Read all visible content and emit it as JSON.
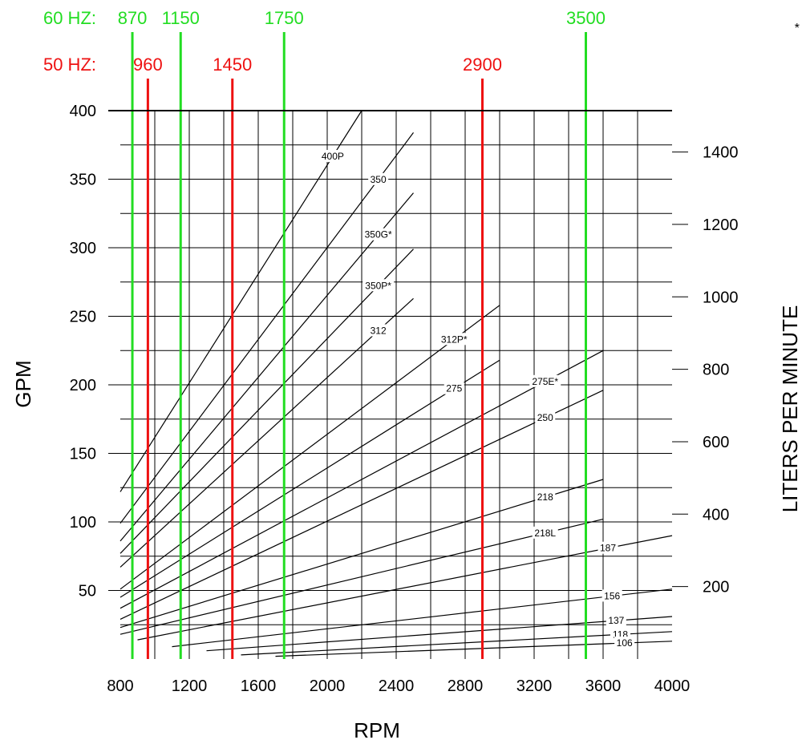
{
  "chart_data": {
    "type": "line",
    "title": "",
    "xlabel": "RPM",
    "ylabel": "GPM",
    "y2label": "LITERS PER MINUTE",
    "xlim": [
      800,
      4000
    ],
    "ylim": [
      0,
      400
    ],
    "x_ticks": [
      800,
      1200,
      1600,
      2000,
      2400,
      2800,
      3200,
      3600,
      4000
    ],
    "y_ticks": [
      50,
      100,
      150,
      200,
      250,
      300,
      350,
      400
    ],
    "y2_ticks": [
      200,
      400,
      600,
      800,
      1000,
      1200,
      1400
    ],
    "grid": true,
    "footnote": "*",
    "frequency_lines": [
      {
        "label": "60 HZ:",
        "color": "#22dd22",
        "rpms": [
          870,
          1150,
          1750,
          3500
        ],
        "texts": [
          "870",
          "1150",
          "1750",
          "3500"
        ]
      },
      {
        "label": "50 HZ:",
        "color": "#ee1111",
        "rpms": [
          960,
          1450,
          2900
        ],
        "texts": [
          "960",
          "1450",
          "2900"
        ]
      }
    ],
    "series": [
      {
        "name": "400P",
        "x": [
          800,
          2200
        ],
        "y": [
          122,
          400
        ]
      },
      {
        "name": "350",
        "x": [
          800,
          2500
        ],
        "y": [
          99,
          384
        ]
      },
      {
        "name": "350G*",
        "x": [
          800,
          2500
        ],
        "y": [
          86,
          340
        ]
      },
      {
        "name": "350P*",
        "x": [
          800,
          2500
        ],
        "y": [
          77,
          299
        ]
      },
      {
        "name": "312",
        "x": [
          800,
          2500
        ],
        "y": [
          67,
          263
        ]
      },
      {
        "name": "312P*",
        "x": [
          800,
          3000
        ],
        "y": [
          51,
          258
        ]
      },
      {
        "name": "275",
        "x": [
          800,
          3000
        ],
        "y": [
          45,
          218
        ]
      },
      {
        "name": "275E*",
        "x": [
          800,
          3600
        ],
        "y": [
          37,
          225
        ]
      },
      {
        "name": "250",
        "x": [
          800,
          3600
        ],
        "y": [
          29,
          196
        ]
      },
      {
        "name": "218",
        "x": [
          800,
          3600
        ],
        "y": [
          23,
          131
        ]
      },
      {
        "name": "218L",
        "x": [
          800,
          3600
        ],
        "y": [
          18,
          102
        ]
      },
      {
        "name": "187",
        "x": [
          900,
          4000
        ],
        "y": [
          14,
          90
        ]
      },
      {
        "name": "156",
        "x": [
          1100,
          4000
        ],
        "y": [
          9,
          51
        ]
      },
      {
        "name": "137",
        "x": [
          1300,
          4000
        ],
        "y": [
          6,
          31
        ]
      },
      {
        "name": "118",
        "x": [
          1500,
          4000
        ],
        "y": [
          3,
          20
        ]
      },
      {
        "name": "106",
        "x": [
          1700,
          4000
        ],
        "y": [
          2,
          13
        ]
      }
    ]
  }
}
